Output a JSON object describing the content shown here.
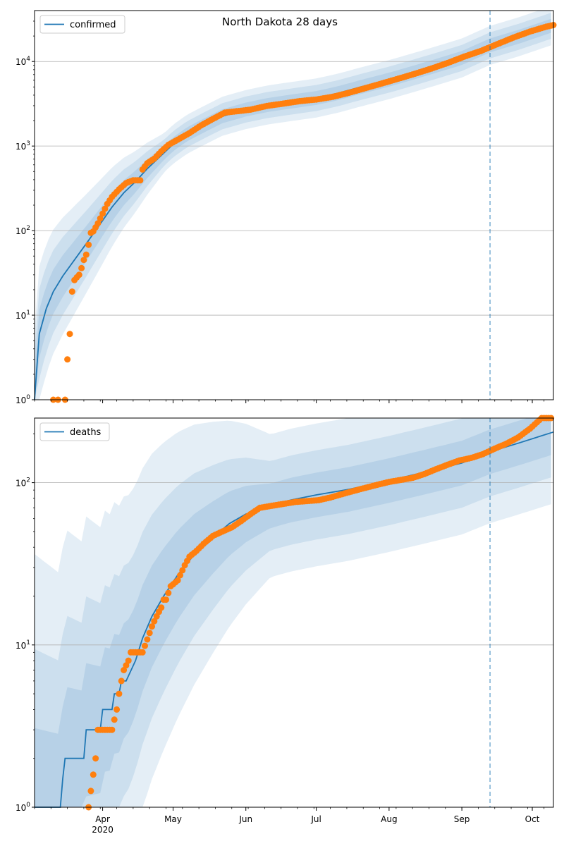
{
  "chart_data": [
    {
      "type": "line",
      "title": "North Dakota 28 days",
      "yscale": "log",
      "ylim": [
        1,
        40000
      ],
      "y_ticks": [
        1,
        10,
        100,
        1000,
        10000
      ],
      "y_tick_labels": [
        "10^0",
        "10^1",
        "10^2",
        "10^3",
        "10^4"
      ],
      "grid": "y-major",
      "legend": "top-left",
      "forecast_start": "2020-09-13",
      "series": [
        {
          "name": "confirmed",
          "kind": "model-median",
          "x": [
            "2020-03-03",
            "2020-03-05",
            "2020-03-08",
            "2020-03-11",
            "2020-03-15",
            "2020-03-20",
            "2020-03-25",
            "2020-03-31",
            "2020-04-05",
            "2020-04-10",
            "2020-04-15",
            "2020-04-20",
            "2020-04-25",
            "2020-05-01",
            "2020-05-07",
            "2020-05-15",
            "2020-05-22",
            "2020-06-01",
            "2020-06-10",
            "2020-06-20",
            "2020-07-01",
            "2020-07-10",
            "2020-07-20",
            "2020-08-01",
            "2020-08-10",
            "2020-08-20",
            "2020-09-01",
            "2020-09-13",
            "2020-09-25",
            "2020-10-10"
          ],
          "y": [
            1,
            6,
            12,
            19,
            29,
            45,
            70,
            120,
            190,
            280,
            380,
            540,
            730,
            1050,
            1380,
            1800,
            2250,
            2700,
            3050,
            3350,
            3700,
            4200,
            5000,
            6100,
            7200,
            8700,
            11000,
            15500,
            19500,
            27000
          ]
        },
        {
          "name": "confirmed",
          "kind": "observed",
          "x": [
            "2020-03-11",
            "2020-03-13",
            "2020-03-16",
            "2020-03-17",
            "2020-03-18",
            "2020-03-19",
            "2020-03-20",
            "2020-03-21",
            "2020-03-22",
            "2020-03-23",
            "2020-03-24",
            "2020-03-25",
            "2020-03-26",
            "2020-03-27",
            "2020-03-28",
            "2020-03-30",
            "2020-04-01",
            "2020-04-03",
            "2020-04-05",
            "2020-04-08",
            "2020-04-11",
            "2020-04-14",
            "2020-04-17",
            "2020-04-18",
            "2020-04-20",
            "2020-04-23",
            "2020-04-26",
            "2020-04-29",
            "2020-05-03",
            "2020-05-08",
            "2020-05-13",
            "2020-05-18",
            "2020-05-23",
            "2020-05-28",
            "2020-06-03",
            "2020-06-10",
            "2020-06-17",
            "2020-06-24",
            "2020-07-01",
            "2020-07-08",
            "2020-07-15",
            "2020-07-22",
            "2020-07-29",
            "2020-08-05",
            "2020-08-12",
            "2020-08-19",
            "2020-08-26",
            "2020-09-02",
            "2020-09-09",
            "2020-09-16",
            "2020-09-23",
            "2020-09-30",
            "2020-10-07",
            "2020-10-10"
          ],
          "y": [
            1,
            1,
            1,
            3,
            6,
            19,
            26,
            28,
            30,
            36,
            45,
            52,
            68,
            94,
            98,
            122,
            159,
            207,
            251,
            308,
            365,
            394,
            393,
            528,
            627,
            709,
            867,
            1033,
            1191,
            1425,
            1761,
            2095,
            2481,
            2577,
            2698,
            2984,
            3178,
            3400,
            3550,
            3821,
            4270,
            4850,
            5507,
            6268,
            7157,
            8240,
            9620,
            11420,
            13300,
            16000,
            19200,
            22600,
            25800,
            27000
          ]
        }
      ]
    },
    {
      "type": "line",
      "yscale": "log",
      "ylim": [
        1,
        250
      ],
      "y_ticks": [
        1,
        10,
        100
      ],
      "y_tick_labels": [
        "10^0",
        "10^1",
        "10^2"
      ],
      "grid": "y-major",
      "legend": "top-left",
      "forecast_start": "2020-09-13",
      "x_tick_labels": [
        {
          "date": "2020-04-01",
          "label": "Apr"
        },
        {
          "date": "2020-05-01",
          "label": "May"
        },
        {
          "date": "2020-06-01",
          "label": "Jun"
        },
        {
          "date": "2020-07-01",
          "label": "Jul"
        },
        {
          "date": "2020-08-01",
          "label": "Aug"
        },
        {
          "date": "2020-09-01",
          "label": "Sep"
        },
        {
          "date": "2020-10-01",
          "label": "Oct"
        }
      ],
      "x_year_label": "2020",
      "series": [
        {
          "name": "deaths",
          "kind": "model-median",
          "x": [
            "2020-03-03",
            "2020-03-14",
            "2020-03-15",
            "2020-03-16",
            "2020-03-24",
            "2020-03-25",
            "2020-03-31",
            "2020-04-01",
            "2020-04-05",
            "2020-04-06",
            "2020-04-08",
            "2020-04-09",
            "2020-04-11",
            "2020-04-15",
            "2020-04-18",
            "2020-04-22",
            "2020-04-27",
            "2020-05-03",
            "2020-05-10",
            "2020-05-18",
            "2020-05-25",
            "2020-06-01",
            "2020-06-10",
            "2020-06-20",
            "2020-07-01",
            "2020-07-15",
            "2020-08-01",
            "2020-08-15",
            "2020-09-01",
            "2020-09-13",
            "2020-09-25",
            "2020-10-10"
          ],
          "y": [
            1,
            1,
            1.5,
            2,
            2,
            3,
            3,
            4,
            4,
            5,
            5,
            6,
            6,
            8,
            11,
            15,
            20,
            27,
            36,
            46,
            56,
            64,
            71,
            78,
            84,
            91,
            103,
            115,
            132,
            155,
            175,
            205
          ]
        },
        {
          "name": "deaths",
          "kind": "observed",
          "x": [
            "2020-03-26",
            "2020-03-29",
            "2020-03-30",
            "2020-04-02",
            "2020-04-05",
            "2020-04-07",
            "2020-04-08",
            "2020-04-09",
            "2020-04-10",
            "2020-04-12",
            "2020-04-13",
            "2020-04-15",
            "2020-04-18",
            "2020-04-22",
            "2020-04-23",
            "2020-04-24",
            "2020-04-25",
            "2020-04-26",
            "2020-04-27",
            "2020-04-28",
            "2020-04-30",
            "2020-05-03",
            "2020-05-06",
            "2020-05-08",
            "2020-05-11",
            "2020-05-14",
            "2020-05-18",
            "2020-05-22",
            "2020-05-26",
            "2020-05-30",
            "2020-06-03",
            "2020-06-07",
            "2020-06-12",
            "2020-06-17",
            "2020-06-22",
            "2020-06-27",
            "2020-07-02",
            "2020-07-07",
            "2020-07-12",
            "2020-07-17",
            "2020-07-22",
            "2020-07-27",
            "2020-08-01",
            "2020-08-06",
            "2020-08-11",
            "2020-08-16",
            "2020-08-21",
            "2020-08-26",
            "2020-08-31",
            "2020-09-05",
            "2020-09-10",
            "2020-09-15",
            "2020-09-20",
            "2020-09-25",
            "2020-09-30",
            "2020-10-05",
            "2020-10-09"
          ],
          "y": [
            1,
            2,
            3,
            3,
            3,
            4,
            5,
            6,
            7,
            8,
            9,
            9,
            9,
            13,
            14,
            15,
            16,
            17,
            19,
            19,
            23,
            25,
            31,
            35,
            38,
            42,
            47,
            50,
            53,
            58,
            64,
            70,
            72,
            74,
            76,
            77,
            78,
            81,
            85,
            89,
            93,
            97,
            101,
            104,
            107,
            113,
            121,
            129,
            137,
            142,
            150,
            162,
            174,
            190,
            215,
            250,
            285
          ]
        }
      ]
    }
  ],
  "colors": {
    "median": "#1f77b4",
    "observed": "#ff7f0e",
    "band": "#1f77b4",
    "grid": "#b0b0b0",
    "forecast_line": "#1f77b4"
  }
}
